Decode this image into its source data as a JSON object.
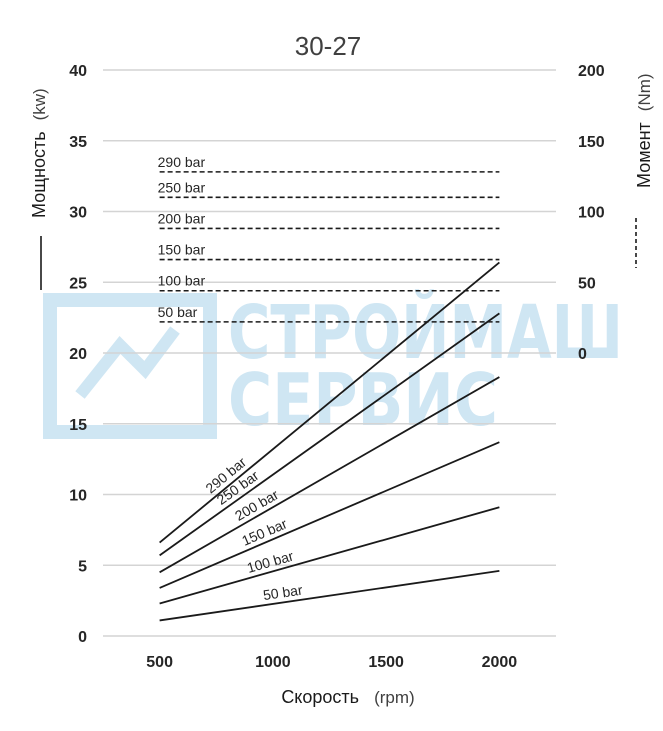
{
  "chart_data": {
    "type": "line",
    "title": "30-27",
    "xlabel": "Скорость",
    "xlabel_unit": "(rpm)",
    "ylabel_left": "Мощность",
    "ylabel_left_unit": "(kw)",
    "ylabel_right": "Момент",
    "ylabel_right_unit": "(Nm)",
    "xlim": [
      250,
      2250
    ],
    "ylim_left": [
      0,
      40
    ],
    "ylim_right": [
      0,
      200
    ],
    "x_ticks": [
      500,
      1000,
      1500,
      2000
    ],
    "y_left_ticks": [
      0,
      5,
      10,
      15,
      20,
      25,
      30,
      35,
      40
    ],
    "y_right_ticks": [
      0,
      50,
      100,
      150,
      200
    ],
    "grid": "horizontal",
    "legend": "left axis: solid line = power; right axis: dashed line = torque",
    "power_series": [
      {
        "name": "50 bar",
        "x": [
          500,
          2000
        ],
        "y": [
          1.1,
          4.6
        ]
      },
      {
        "name": "100 bar",
        "x": [
          500,
          2000
        ],
        "y": [
          2.3,
          9.1
        ]
      },
      {
        "name": "150 bar",
        "x": [
          500,
          2000
        ],
        "y": [
          3.4,
          13.7
        ]
      },
      {
        "name": "200 bar",
        "x": [
          500,
          2000
        ],
        "y": [
          4.5,
          18.3
        ]
      },
      {
        "name": "250 bar",
        "x": [
          500,
          2000
        ],
        "y": [
          5.7,
          22.8
        ]
      },
      {
        "name": "290 bar",
        "x": [
          500,
          2000
        ],
        "y": [
          6.6,
          26.4
        ]
      }
    ],
    "torque_series": [
      {
        "name": "50 bar",
        "x": [
          500,
          2000
        ],
        "y": [
          22,
          22
        ]
      },
      {
        "name": "100 bar",
        "x": [
          500,
          2000
        ],
        "y": [
          44,
          44
        ]
      },
      {
        "name": "150 bar",
        "x": [
          500,
          2000
        ],
        "y": [
          66,
          66
        ]
      },
      {
        "name": "200 bar",
        "x": [
          500,
          2000
        ],
        "y": [
          88,
          88
        ]
      },
      {
        "name": "250 bar",
        "x": [
          500,
          2000
        ],
        "y": [
          110,
          110
        ]
      },
      {
        "name": "290 bar",
        "x": [
          500,
          2000
        ],
        "y": [
          128,
          128
        ]
      }
    ]
  },
  "watermark": {
    "line1": "СТРОЙМАШ",
    "line2": "СЕРВИС",
    "color": "#cfe6f3"
  },
  "colors": {
    "line": "#1a1a1a",
    "grid": "#d4d4d4",
    "text": "#262626"
  }
}
